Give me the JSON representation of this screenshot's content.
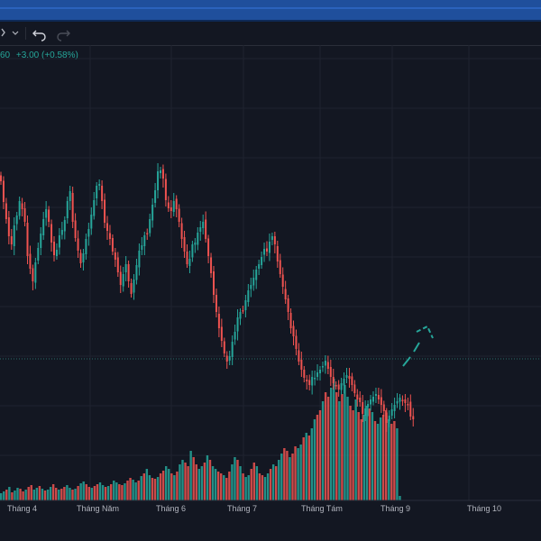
{
  "toolbar": {
    "chart_style_icon": "candles-icon",
    "dropdown_icon": "chevron-down-icon",
    "undo_icon": "undo-icon",
    "redo_icon": "redo-icon"
  },
  "legend": {
    "price_fragment": "60",
    "change": "+3.00 (+0.58%)"
  },
  "colors": {
    "up": "#26a69a",
    "down": "#ef5350",
    "background": "#131722",
    "grid": "#1f2330"
  },
  "chart_data": {
    "type": "candlestick",
    "x_labels": [
      "Tháng 4",
      "Tháng Năm",
      "Tháng 6",
      "Tháng 7",
      "Tháng Tám",
      "Tháng 9",
      "Tháng 10"
    ],
    "price_path": [
      155,
      170,
      190,
      210,
      220,
      200,
      190,
      175,
      185,
      200,
      230,
      245,
      260,
      240,
      225,
      210,
      195,
      185,
      200,
      215,
      230,
      225,
      210,
      205,
      195,
      175,
      165,
      200,
      210,
      225,
      240,
      230,
      215,
      205,
      190,
      175,
      160,
      150,
      170,
      195,
      205,
      215,
      230,
      240,
      255,
      270,
      250,
      240,
      260,
      275,
      260,
      245,
      230,
      225,
      215,
      205,
      190,
      175,
      160,
      140,
      140,
      150,
      175,
      185,
      180,
      170,
      180,
      195,
      215,
      230,
      245,
      240,
      225,
      215,
      205,
      200,
      195,
      215,
      235,
      255,
      280,
      300,
      310,
      325,
      340,
      350,
      345,
      330,
      320,
      305,
      300,
      290,
      280,
      270,
      265,
      258,
      250,
      245,
      238,
      230,
      225,
      215,
      210,
      220,
      240,
      255,
      270,
      285,
      300,
      310,
      320,
      335,
      350,
      360,
      370,
      375,
      380,
      372,
      365,
      360,
      358,
      355,
      350,
      360,
      370,
      378,
      382,
      378,
      372,
      368,
      365,
      370,
      378,
      388,
      396,
      400,
      405,
      400,
      396,
      392,
      390,
      388,
      395,
      402,
      410,
      415,
      408,
      402,
      398,
      395,
      392,
      396,
      400,
      402,
      408,
      412
    ],
    "volume_path": [
      8,
      10,
      12,
      15,
      9,
      11,
      14,
      13,
      10,
      12,
      15,
      17,
      12,
      14,
      16,
      13,
      11,
      12,
      15,
      18,
      14,
      12,
      13,
      15,
      17,
      14,
      12,
      13,
      16,
      19,
      21,
      18,
      15,
      14,
      16,
      18,
      20,
      17,
      15,
      16,
      18,
      22,
      20,
      18,
      17,
      19,
      22,
      25,
      23,
      20,
      22,
      27,
      30,
      35,
      28,
      25,
      24,
      26,
      30,
      33,
      38,
      35,
      30,
      28,
      32,
      40,
      45,
      42,
      38,
      55,
      48,
      40,
      35,
      38,
      42,
      50,
      45,
      38,
      35,
      32,
      30,
      28,
      25,
      32,
      40,
      48,
      45,
      38,
      30,
      26,
      28,
      35,
      42,
      38,
      30,
      28,
      26,
      30,
      35,
      40,
      38,
      45,
      52,
      58,
      55,
      48,
      52,
      60,
      58,
      62,
      70,
      75,
      72,
      80,
      90,
      95,
      100,
      110,
      120,
      115,
      125,
      135,
      120,
      110,
      118,
      128,
      115,
      105,
      100,
      112,
      98,
      90,
      95,
      105,
      102,
      98,
      88,
      85,
      92,
      95,
      100,
      90,
      85,
      88,
      80,
      5
    ]
  }
}
